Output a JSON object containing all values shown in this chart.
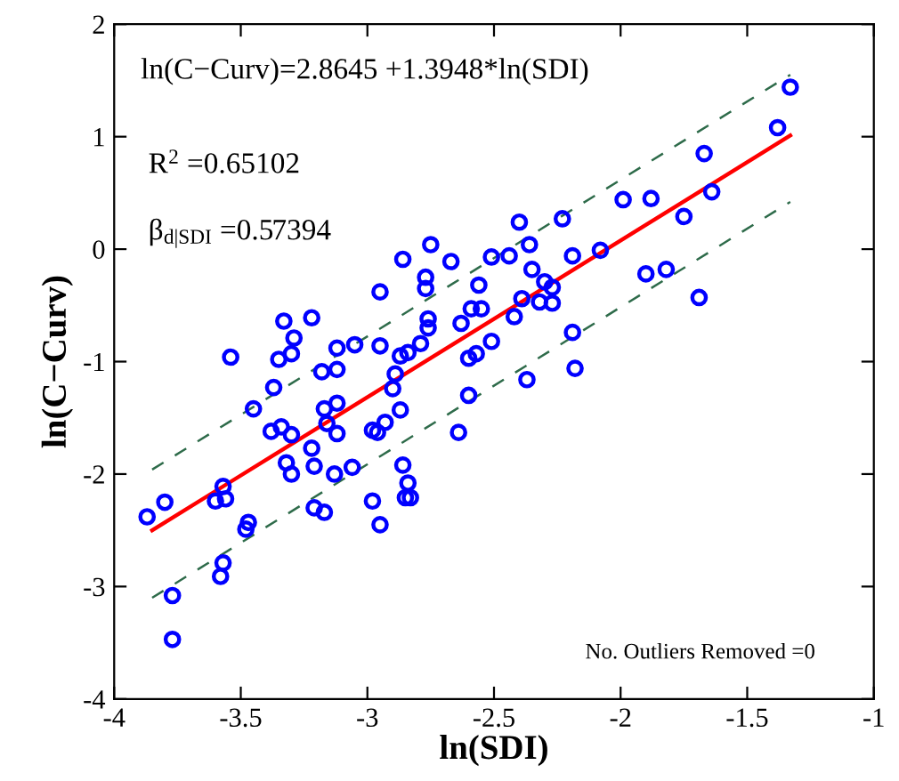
{
  "chart_data": {
    "type": "scatter",
    "xlabel": "ln(SDI)",
    "ylabel": "ln(C−Curv)",
    "xlim": [
      -4,
      -1
    ],
    "ylim": [
      -4,
      2
    ],
    "xticks": [
      -4,
      -3.5,
      -3,
      -2.5,
      -2,
      -1.5,
      -1
    ],
    "yticks": [
      -4,
      -3,
      -2,
      -1,
      0,
      1,
      2
    ],
    "grid": false,
    "legend": false,
    "marker": "circle",
    "annotations": [
      "ln(C−Curv)=2.8645 +1.3948*ln(SDI)",
      "R$^{2}$ =0.65102",
      "β$_{d|SDI}$ =0.57394",
      "No. Outliers Removed =0"
    ],
    "series": [
      {
        "color": "#0000ff",
        "x": [
          -3.87,
          -3.8,
          -3.77,
          -3.77,
          -3.6,
          -3.57,
          -3.56,
          -3.57,
          -3.58,
          -3.54,
          -3.48,
          -3.47,
          -3.45,
          -3.37,
          -3.38,
          -3.34,
          -3.3,
          -3.32,
          -3.3,
          -3.35,
          -3.33,
          -3.29,
          -3.3,
          -3.22,
          -3.18,
          -3.12,
          -3.12,
          -3.05,
          -3.17,
          -3.12,
          -3.16,
          -3.12,
          -3.22,
          -3.21,
          -3.13,
          -3.06,
          -3.21,
          -3.17,
          -2.95,
          -2.95,
          -2.98,
          -2.96,
          -2.98,
          -2.95,
          -2.93,
          -2.89,
          -2.9,
          -2.87,
          -2.87,
          -2.84,
          -2.79,
          -2.86,
          -2.75,
          -2.77,
          -2.77,
          -2.76,
          -2.76,
          -2.86,
          -2.84,
          -2.85,
          -2.83,
          -2.64,
          -2.67,
          -2.63,
          -2.6,
          -2.57,
          -2.6,
          -2.56,
          -2.59,
          -2.55,
          -2.51,
          -2.51,
          -2.44,
          -2.4,
          -2.36,
          -2.35,
          -2.42,
          -2.39,
          -2.37,
          -2.32,
          -2.3,
          -2.27,
          -2.27,
          -2.23,
          -2.19,
          -2.18,
          -2.19,
          -2.08,
          -1.99,
          -1.88,
          -1.9,
          -1.82,
          -1.75,
          -1.69,
          -1.67,
          -1.64,
          -1.38,
          -1.33
        ],
        "values": [
          -2.38,
          -2.25,
          -3.08,
          -3.47,
          -2.24,
          -2.11,
          -2.22,
          -2.79,
          -2.91,
          -0.96,
          -2.49,
          -2.43,
          -1.42,
          -1.23,
          -1.62,
          -1.58,
          -1.65,
          -1.9,
          -2.0,
          -0.98,
          -0.64,
          -0.79,
          -0.93,
          -0.61,
          -1.09,
          -1.07,
          -0.88,
          -0.85,
          -1.42,
          -1.37,
          -1.55,
          -1.64,
          -1.77,
          -1.93,
          -2.0,
          -1.94,
          -2.3,
          -2.34,
          -0.38,
          -0.86,
          -1.61,
          -1.63,
          -2.24,
          -2.45,
          -1.54,
          -1.11,
          -1.24,
          -1.43,
          -0.95,
          -0.92,
          -0.84,
          -0.09,
          0.04,
          -0.25,
          -0.35,
          -0.62,
          -0.7,
          -1.92,
          -2.08,
          -2.21,
          -2.21,
          -1.63,
          -0.11,
          -0.66,
          -0.97,
          -0.93,
          -1.3,
          -0.32,
          -0.53,
          -0.53,
          -0.82,
          -0.07,
          -0.06,
          0.24,
          0.04,
          -0.18,
          -0.6,
          -0.44,
          -1.16,
          -0.47,
          -0.29,
          -0.34,
          -0.48,
          0.27,
          -0.74,
          -1.06,
          -0.06,
          -0.01,
          0.44,
          0.45,
          -0.22,
          -0.18,
          0.29,
          -0.43,
          0.85,
          0.51,
          1.08,
          1.44
        ]
      },
      {
        "type": "line",
        "color": "#ff0000",
        "line_style": "solid",
        "marker": "none",
        "x": [
          -3.85,
          -1.33
        ],
        "values": [
          -2.5,
          1.01
        ]
      },
      {
        "type": "line",
        "color": "#2e6b4a",
        "line_style": "dashed",
        "marker": "none",
        "x": [
          -3.85,
          -1.33
        ],
        "values": [
          -1.96,
          1.55
        ]
      },
      {
        "type": "line",
        "color": "#2e6b4a",
        "line_style": "dashed",
        "marker": "none",
        "x": [
          -3.85,
          -1.33
        ],
        "values": [
          -3.1,
          0.42
        ]
      }
    ]
  }
}
